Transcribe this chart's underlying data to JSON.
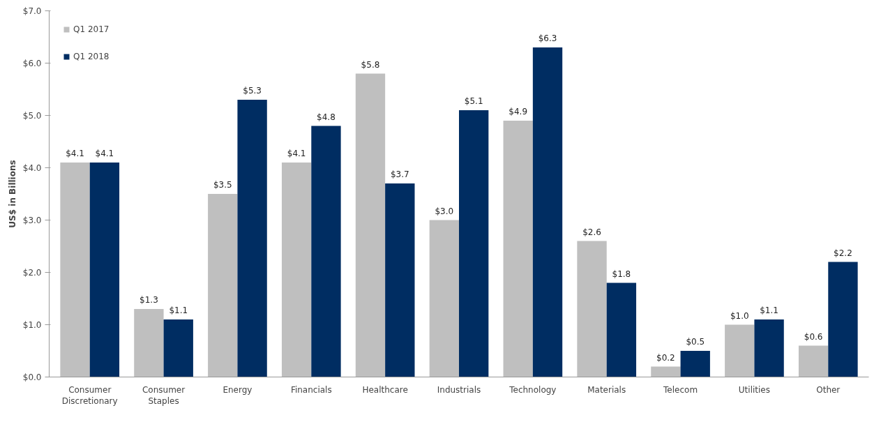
{
  "chart_data": {
    "type": "bar",
    "ylabel": "US$ in Billions",
    "categories": [
      "Consumer Discretionary",
      "Consumer Staples",
      "Energy",
      "Financials",
      "Healthcare",
      "Industrials",
      "Technology",
      "Materials",
      "Telecom",
      "Utilities",
      "Other"
    ],
    "series": [
      {
        "name": "Q1 2017",
        "color": "#bfbfbf",
        "values": [
          4.1,
          1.3,
          3.5,
          4.1,
          5.8,
          3.0,
          4.9,
          2.6,
          0.2,
          1.0,
          0.6
        ],
        "value_labels": [
          "$4.1",
          "$1.3",
          "$3.5",
          "$4.1",
          "$5.8",
          "$3.0",
          "$4.9",
          "$2.6",
          "$0.2",
          "$1.0",
          "$0.6"
        ]
      },
      {
        "name": "Q1 2018",
        "color": "#002d62",
        "values": [
          4.1,
          1.1,
          5.3,
          4.8,
          3.7,
          5.1,
          6.3,
          1.8,
          0.5,
          1.1,
          2.2
        ],
        "value_labels": [
          "$4.1",
          "$1.1",
          "$5.3",
          "$4.8",
          "$3.7",
          "$5.1",
          "$6.3",
          "$1.8",
          "$0.5",
          "$1.1",
          "$2.2"
        ]
      }
    ],
    "ylim": [
      0,
      7
    ],
    "yticks": [
      {
        "value": 0,
        "label": "$0.0"
      },
      {
        "value": 1,
        "label": "$1.0"
      },
      {
        "value": 2,
        "label": "$2.0"
      },
      {
        "value": 3,
        "label": "$3.0"
      },
      {
        "value": 4,
        "label": "$4.0"
      },
      {
        "value": 5,
        "label": "$5.0"
      },
      {
        "value": 6,
        "label": "$6.0"
      },
      {
        "value": 7,
        "label": "$7.0"
      }
    ],
    "grid": false,
    "legend": "top left"
  }
}
